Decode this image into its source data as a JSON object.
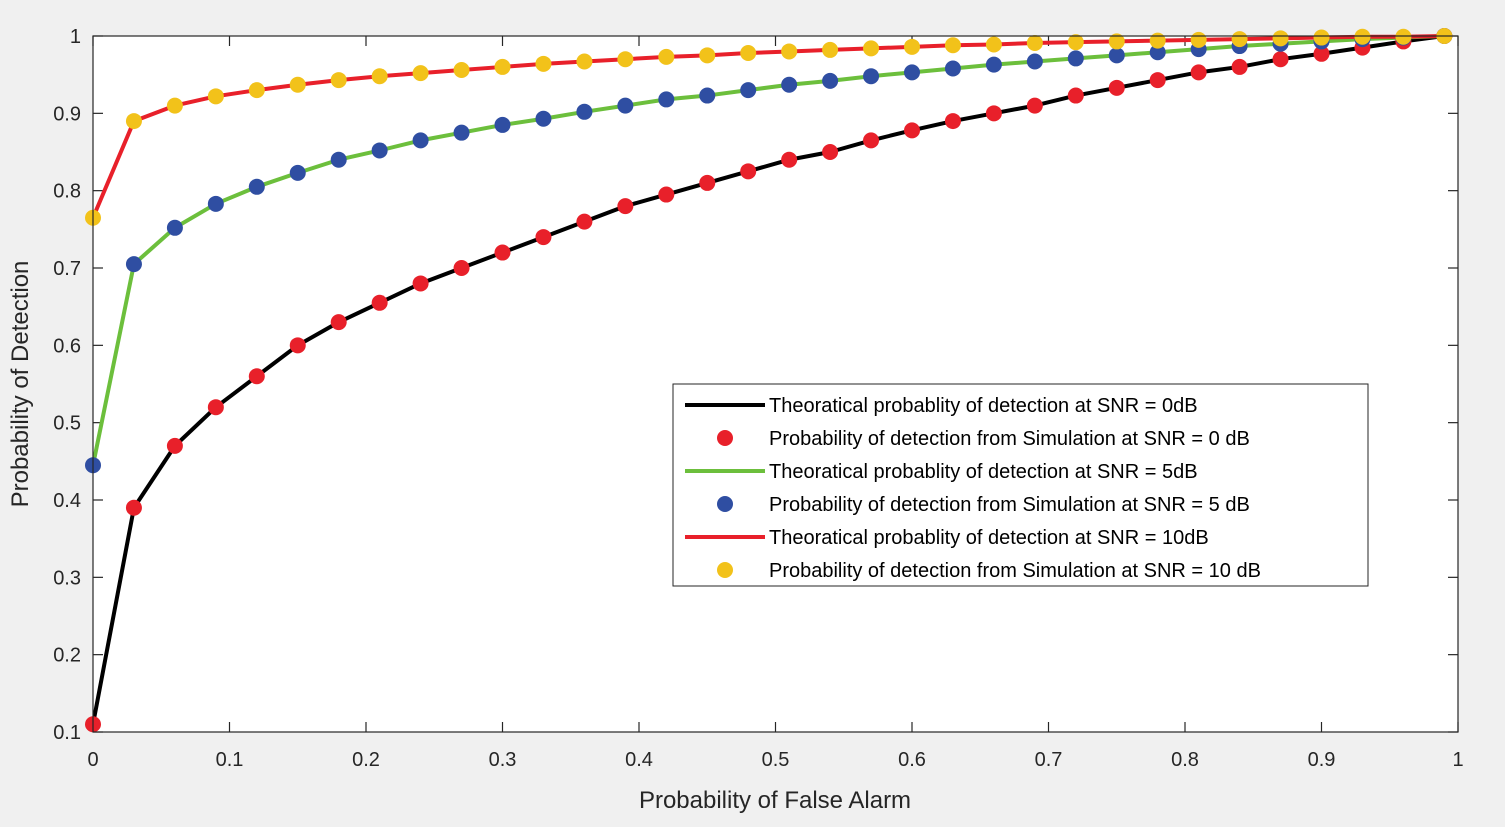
{
  "chart_data": {
    "type": "line",
    "title": "",
    "xlabel": "Probability of False Alarm",
    "ylabel": "Probability of Detection",
    "xlim": [
      0,
      1
    ],
    "ylim": [
      0.1,
      1
    ],
    "xticks": [
      0,
      0.1,
      0.2,
      0.3,
      0.4,
      0.5,
      0.6,
      0.7,
      0.8,
      0.9,
      1
    ],
    "yticks": [
      0.1,
      0.2,
      0.3,
      0.4,
      0.5,
      0.6,
      0.7,
      0.8,
      0.9,
      1
    ],
    "xtick_labels": [
      "0",
      "0.1",
      "0.2",
      "0.3",
      "0.4",
      "0.5",
      "0.6",
      "0.7",
      "0.8",
      "0.9",
      "1"
    ],
    "ytick_labels": [
      "0.1",
      "0.2",
      "0.3",
      "0.4",
      "0.5",
      "0.6",
      "0.7",
      "0.8",
      "0.9",
      "1"
    ],
    "legend_position": "center-right",
    "x": [
      0.0,
      0.03,
      0.06,
      0.09,
      0.12,
      0.15,
      0.18,
      0.21,
      0.24,
      0.27,
      0.3,
      0.33,
      0.36,
      0.39,
      0.42,
      0.45,
      0.48,
      0.51,
      0.54,
      0.57,
      0.6,
      0.63,
      0.66,
      0.69,
      0.72,
      0.75,
      0.78,
      0.81,
      0.84,
      0.87,
      0.9,
      0.93,
      0.96,
      0.99
    ],
    "series": [
      {
        "name": "Theoratical probablity of detection at SNR = 0dB",
        "kind": "line",
        "color": "#000000",
        "values": [
          0.11,
          0.39,
          0.47,
          0.52,
          0.56,
          0.6,
          0.63,
          0.655,
          0.68,
          0.7,
          0.72,
          0.74,
          0.76,
          0.78,
          0.795,
          0.81,
          0.825,
          0.84,
          0.85,
          0.865,
          0.878,
          0.89,
          0.9,
          0.91,
          0.923,
          0.933,
          0.943,
          0.953,
          0.96,
          0.97,
          0.977,
          0.985,
          0.993,
          1.0
        ]
      },
      {
        "name": "Probability of detection from Simulation at SNR = 0 dB",
        "kind": "markers",
        "color": "#e8202a",
        "values": [
          0.11,
          0.39,
          0.47,
          0.52,
          0.56,
          0.6,
          0.63,
          0.655,
          0.68,
          0.7,
          0.72,
          0.74,
          0.76,
          0.78,
          0.795,
          0.81,
          0.825,
          0.84,
          0.85,
          0.865,
          0.878,
          0.89,
          0.9,
          0.91,
          0.923,
          0.933,
          0.943,
          0.953,
          0.96,
          0.97,
          0.977,
          0.985,
          0.993,
          1.0
        ]
      },
      {
        "name": "Theoratical probablity of detection at SNR = 5dB",
        "kind": "line",
        "color": "#6cbf3c",
        "values": [
          0.445,
          0.705,
          0.752,
          0.783,
          0.805,
          0.823,
          0.84,
          0.852,
          0.865,
          0.875,
          0.885,
          0.893,
          0.902,
          0.91,
          0.918,
          0.923,
          0.93,
          0.937,
          0.942,
          0.948,
          0.953,
          0.958,
          0.963,
          0.967,
          0.971,
          0.975,
          0.979,
          0.983,
          0.987,
          0.99,
          0.993,
          0.996,
          0.998,
          1.0
        ]
      },
      {
        "name": "Probability of detection from Simulation at SNR = 5 dB",
        "kind": "markers",
        "color": "#2f4ea2",
        "values": [
          0.445,
          0.705,
          0.752,
          0.783,
          0.805,
          0.823,
          0.84,
          0.852,
          0.865,
          0.875,
          0.885,
          0.893,
          0.902,
          0.91,
          0.918,
          0.923,
          0.93,
          0.937,
          0.942,
          0.948,
          0.953,
          0.958,
          0.963,
          0.967,
          0.971,
          0.975,
          0.979,
          0.983,
          0.987,
          0.99,
          0.993,
          0.996,
          0.998,
          1.0
        ]
      },
      {
        "name": "Theoratical probablity of detection at SNR = 10dB",
        "kind": "line",
        "color": "#e8202a",
        "values": [
          0.765,
          0.89,
          0.91,
          0.922,
          0.93,
          0.937,
          0.943,
          0.948,
          0.952,
          0.956,
          0.96,
          0.964,
          0.967,
          0.97,
          0.973,
          0.975,
          0.978,
          0.98,
          0.982,
          0.984,
          0.986,
          0.988,
          0.989,
          0.991,
          0.992,
          0.993,
          0.994,
          0.995,
          0.996,
          0.997,
          0.998,
          0.999,
          0.999,
          1.0
        ]
      },
      {
        "name": "Probability of detection from Simulation at SNR = 10 dB",
        "kind": "markers",
        "color": "#f2c21a",
        "values": [
          0.765,
          0.89,
          0.91,
          0.922,
          0.93,
          0.937,
          0.943,
          0.948,
          0.952,
          0.956,
          0.96,
          0.964,
          0.967,
          0.97,
          0.973,
          0.975,
          0.978,
          0.98,
          0.982,
          0.984,
          0.986,
          0.988,
          0.989,
          0.991,
          0.992,
          0.993,
          0.994,
          0.995,
          0.996,
          0.997,
          0.998,
          0.999,
          0.999,
          1.0
        ]
      }
    ]
  }
}
